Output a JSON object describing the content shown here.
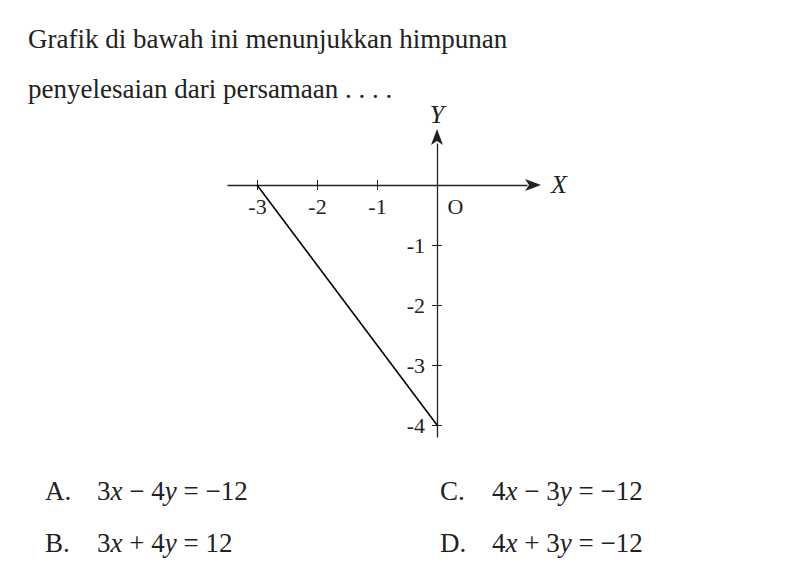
{
  "question": [
    "Grafik di bawah ini menunjukkan himpunan",
    "penyelesaian dari persamaan . . . ."
  ],
  "options": [
    {
      "label": "A.",
      "text": "3x − 4y = −12"
    },
    {
      "label": "B.",
      "text": "3x + 4y = 12"
    },
    {
      "label": "C.",
      "text": "4x − 3y = −12"
    },
    {
      "label": "D.",
      "text": "4x + 3y = −12"
    }
  ],
  "chart_data": {
    "type": "line",
    "x_label": "X",
    "y_label": "Y",
    "x": [
      -3,
      0
    ],
    "values": [
      0,
      -4
    ],
    "color": "#000000",
    "xlim": [
      -3.5,
      1.5
    ],
    "ylim": [
      -4.2,
      0.7
    ],
    "xticks": [
      -3,
      -2,
      -1,
      {
        "value": 0,
        "label": "O"
      }
    ],
    "yticks": [
      -1,
      -2,
      -3,
      -4
    ],
    "grid": false
  }
}
